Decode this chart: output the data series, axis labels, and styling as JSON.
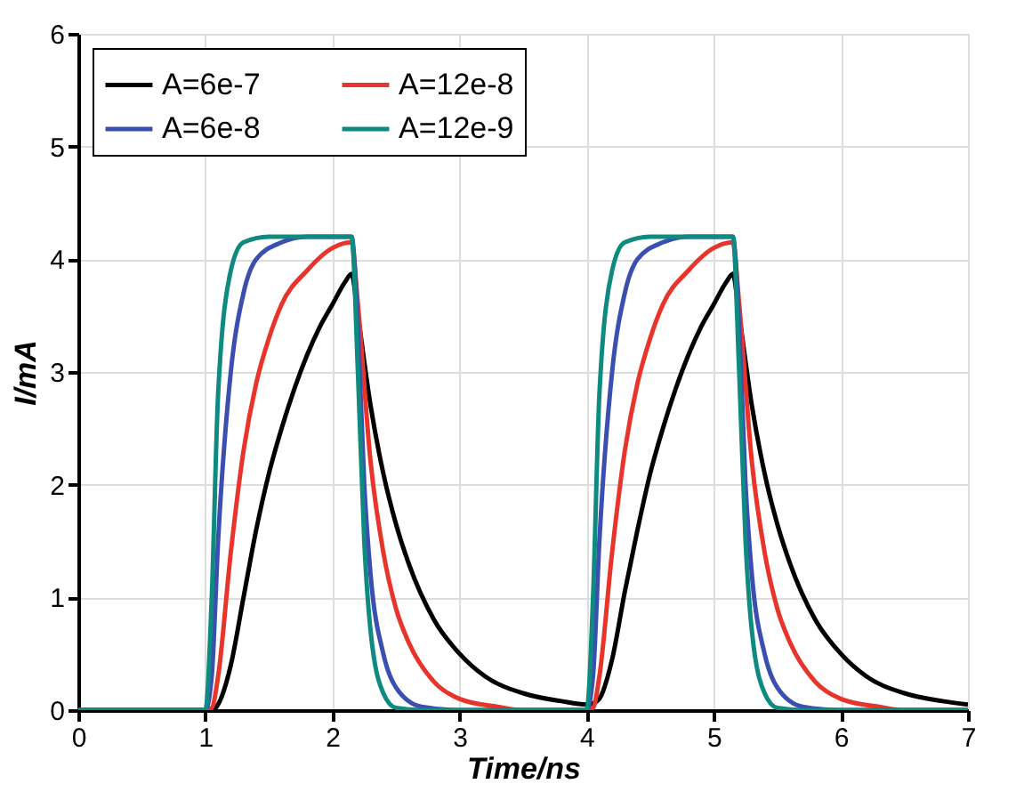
{
  "chart_data": {
    "type": "line",
    "xlabel": "Time/ns",
    "ylabel": "I/mA",
    "xlim": [
      0,
      7
    ],
    "ylim": [
      0,
      6
    ],
    "xticks": [
      0,
      1,
      2,
      3,
      4,
      5,
      6,
      7
    ],
    "yticks": [
      0,
      1,
      2,
      3,
      4,
      5,
      6
    ],
    "grid": true,
    "legend": "top left",
    "line_style": "solid",
    "marker": "none",
    "series": [
      {
        "name": "A=6e-7",
        "color": "#000000",
        "x": [
          0,
          1,
          1.05,
          1.1,
          1.2,
          1.3,
          1.4,
          1.5,
          1.6,
          1.7,
          1.8,
          1.9,
          2.0,
          2.1,
          2.15,
          2.2,
          2.3,
          2.4,
          2.5,
          2.6,
          2.8,
          3.0,
          3.2,
          3.5,
          3.8,
          4.0,
          4.05,
          4.1,
          4.2,
          4.3,
          4.4,
          4.5,
          4.6,
          4.7,
          4.8,
          4.9,
          5.0,
          5.1,
          5.15,
          5.2,
          5.3,
          5.4,
          5.5,
          5.6,
          5.8,
          6.0,
          6.2,
          6.5,
          6.8,
          7.0
        ],
        "values": [
          0,
          0,
          0,
          0.05,
          0.4,
          1.0,
          1.6,
          2.1,
          2.5,
          2.85,
          3.15,
          3.4,
          3.6,
          3.8,
          3.87,
          3.5,
          2.7,
          2.1,
          1.65,
          1.3,
          0.8,
          0.5,
          0.3,
          0.15,
          0.08,
          0.05,
          0.06,
          0.1,
          0.45,
          1.05,
          1.6,
          2.1,
          2.5,
          2.85,
          3.15,
          3.4,
          3.6,
          3.8,
          3.87,
          3.5,
          2.7,
          2.1,
          1.65,
          1.3,
          0.8,
          0.5,
          0.3,
          0.15,
          0.08,
          0.05
        ]
      },
      {
        "name": "A=12e-8",
        "color": "#e8352b",
        "x": [
          0,
          1,
          1.05,
          1.1,
          1.2,
          1.3,
          1.4,
          1.5,
          1.6,
          1.8,
          2.0,
          2.15,
          2.2,
          2.3,
          2.4,
          2.5,
          2.6,
          2.8,
          3.0,
          3.3,
          3.5,
          4.0,
          4.05,
          4.1,
          4.2,
          4.3,
          4.4,
          4.5,
          4.6,
          4.8,
          5.0,
          5.15,
          5.2,
          5.3,
          5.4,
          5.5,
          5.6,
          5.8,
          6.0,
          6.3,
          6.5,
          7.0
        ],
        "values": [
          0,
          0,
          0.02,
          0.3,
          1.4,
          2.3,
          2.9,
          3.3,
          3.6,
          3.9,
          4.1,
          4.15,
          3.6,
          2.2,
          1.4,
          0.9,
          0.6,
          0.25,
          0.1,
          0.03,
          0,
          0,
          0.02,
          0.3,
          1.4,
          2.3,
          2.9,
          3.3,
          3.6,
          3.9,
          4.1,
          4.15,
          3.6,
          2.2,
          1.4,
          0.9,
          0.6,
          0.25,
          0.1,
          0.03,
          0,
          0
        ]
      },
      {
        "name": "A=6e-8",
        "color": "#3b4fb0",
        "x": [
          0,
          1,
          1.05,
          1.1,
          1.2,
          1.3,
          1.4,
          1.6,
          1.8,
          2.15,
          2.2,
          2.25,
          2.3,
          2.4,
          2.5,
          2.7,
          3.0,
          4.0,
          4.05,
          4.1,
          4.2,
          4.3,
          4.4,
          4.6,
          4.8,
          5.15,
          5.2,
          5.25,
          5.3,
          5.4,
          5.5,
          5.7,
          6.0,
          7.0
        ],
        "values": [
          0,
          0,
          0.3,
          1.5,
          3.0,
          3.7,
          4.0,
          4.15,
          4.2,
          4.2,
          3.4,
          2.0,
          1.2,
          0.5,
          0.2,
          0.03,
          0,
          0,
          0.3,
          1.5,
          3.0,
          3.7,
          4.0,
          4.15,
          4.2,
          4.2,
          3.4,
          2.0,
          1.2,
          0.5,
          0.2,
          0.03,
          0,
          0
        ]
      },
      {
        "name": "A=12e-9",
        "color": "#0e8a80",
        "x": [
          0,
          1,
          1.05,
          1.1,
          1.2,
          1.3,
          1.5,
          2.15,
          2.2,
          2.25,
          2.3,
          2.4,
          2.5,
          2.7,
          4.0,
          4.05,
          4.1,
          4.2,
          4.3,
          4.5,
          5.15,
          5.2,
          5.25,
          5.3,
          5.4,
          5.5,
          5.7,
          7.0
        ],
        "values": [
          0,
          0,
          1.0,
          2.8,
          3.9,
          4.15,
          4.2,
          4.2,
          3.0,
          1.5,
          0.7,
          0.15,
          0.02,
          0,
          0,
          1.0,
          2.8,
          3.9,
          4.15,
          4.2,
          4.2,
          3.0,
          1.5,
          0.7,
          0.15,
          0.02,
          0,
          0
        ]
      }
    ]
  }
}
